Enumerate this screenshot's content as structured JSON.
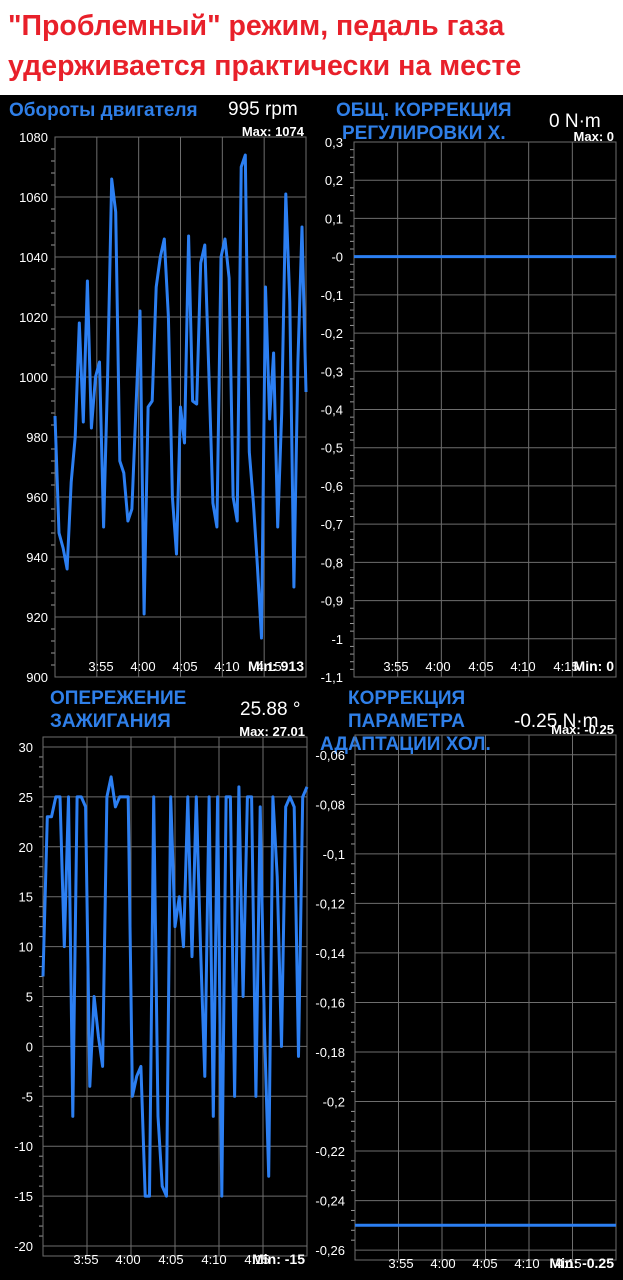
{
  "banner": {
    "line1": "\"Проблемный\" режим, педаль газа",
    "line2": "удерживается практически на месте"
  },
  "colors": {
    "accent": "#2f7fe8",
    "line": "#2c7ff2",
    "grid": "#6e6e6e",
    "background": "#000000"
  },
  "panels": [
    {
      "title_lines": [
        "Обороты двигателя"
      ],
      "value": "995 rpm",
      "max_label": "Max: 1074",
      "min_label": "Min: 913"
    },
    {
      "title_lines": [
        "ОБЩ. КОРРЕКЦИЯ",
        "РЕГУЛИРОВКИ Х."
      ],
      "value": "0 N·m",
      "max_label": "Max: 0",
      "min_label": "Min: 0"
    },
    {
      "title_lines": [
        "ОПЕРЕЖЕНИЕ",
        "ЗАЖИГАНИЯ"
      ],
      "value": "25.88 °",
      "max_label": "Max: 27.01",
      "min_label": "Min: -15"
    },
    {
      "title_lines": [
        "КОРРЕКЦИЯ",
        "ПАРАМЕТРА",
        "АДАПТАЦИИ ХОЛ."
      ],
      "value": "-0.25 N·m",
      "max_label": "Max: -0.25",
      "min_label": "Min: -0.25"
    }
  ],
  "chart_data": [
    {
      "type": "line",
      "series": [
        {
          "values": [
            987,
            948,
            943,
            936,
            965,
            980,
            1018,
            985,
            1032,
            983,
            1000,
            1005,
            950,
            1000,
            1066,
            1055,
            972,
            968,
            952,
            956,
            990,
            1022,
            921,
            990,
            992,
            1030,
            1040,
            1046,
            1020,
            960,
            941,
            990,
            978,
            1047,
            992,
            991,
            1038,
            1044,
            1002,
            958,
            950,
            1040,
            1046,
            1033,
            960,
            952,
            1070,
            1074,
            975,
            958,
            937,
            913,
            1030,
            986,
            1008,
            950,
            988,
            1061,
            1025,
            930,
            1005,
            1050,
            995
          ]
        }
      ],
      "x_ticks": [
        "3:55",
        "4:00",
        "4:05",
        "4:10",
        "4:15"
      ],
      "y_ticks": [
        "1080",
        "1060",
        "1040",
        "1020",
        "1000",
        "980",
        "960",
        "940",
        "920",
        "900"
      ],
      "ylim": [
        900,
        1080
      ]
    },
    {
      "type": "line",
      "series": [
        {
          "values": [
            0,
            0
          ]
        }
      ],
      "x_ticks": [
        "3:55",
        "4:00",
        "4:05",
        "4:10",
        "4:15"
      ],
      "y_ticks": [
        "0,3",
        "0,2",
        "0,1",
        "-0",
        "-0,1",
        "-0,2",
        "-0,3",
        "-0,4",
        "-0,5",
        "-0,6",
        "-0,7",
        "-0,8",
        "-0,9",
        "-1",
        "-1,1"
      ],
      "ylim": [
        -1.1,
        0.3
      ]
    },
    {
      "type": "line",
      "series": [
        {
          "values": [
            7,
            23,
            23,
            25,
            25,
            10,
            25,
            -7,
            25,
            25,
            24,
            -4,
            5,
            1,
            -2,
            25,
            27,
            24,
            25,
            25,
            25,
            -5,
            -3,
            -2,
            -15,
            -15,
            25,
            -7,
            -14,
            -15,
            25,
            12,
            15,
            10,
            25,
            9,
            25,
            10,
            -3,
            25,
            -7,
            25,
            -15,
            25,
            25,
            -5,
            26,
            5,
            25,
            25,
            -5,
            24,
            2,
            -13,
            25,
            17,
            0,
            24,
            25,
            24,
            -1,
            25,
            26
          ]
        }
      ],
      "x_ticks": [
        "3:55",
        "4:00",
        "4:05",
        "4:10",
        "4:15"
      ],
      "y_ticks": [
        "30",
        "25",
        "20",
        "15",
        "10",
        "5",
        "0",
        "-5",
        "-10",
        "-15",
        "-20"
      ],
      "ylim": [
        -21,
        31
      ]
    },
    {
      "type": "line",
      "series": [
        {
          "values": [
            -0.25,
            -0.25
          ]
        }
      ],
      "x_ticks": [
        "3:55",
        "4:00",
        "4:05",
        "4:10",
        "4:15"
      ],
      "y_ticks": [
        "-0,06",
        "-0,08",
        "-0,1",
        "-0,12",
        "-0,14",
        "-0,16",
        "-0,18",
        "-0,2",
        "-0,22",
        "-0,24",
        "-0,26"
      ],
      "ylim": [
        -0.264,
        -0.052
      ]
    }
  ]
}
